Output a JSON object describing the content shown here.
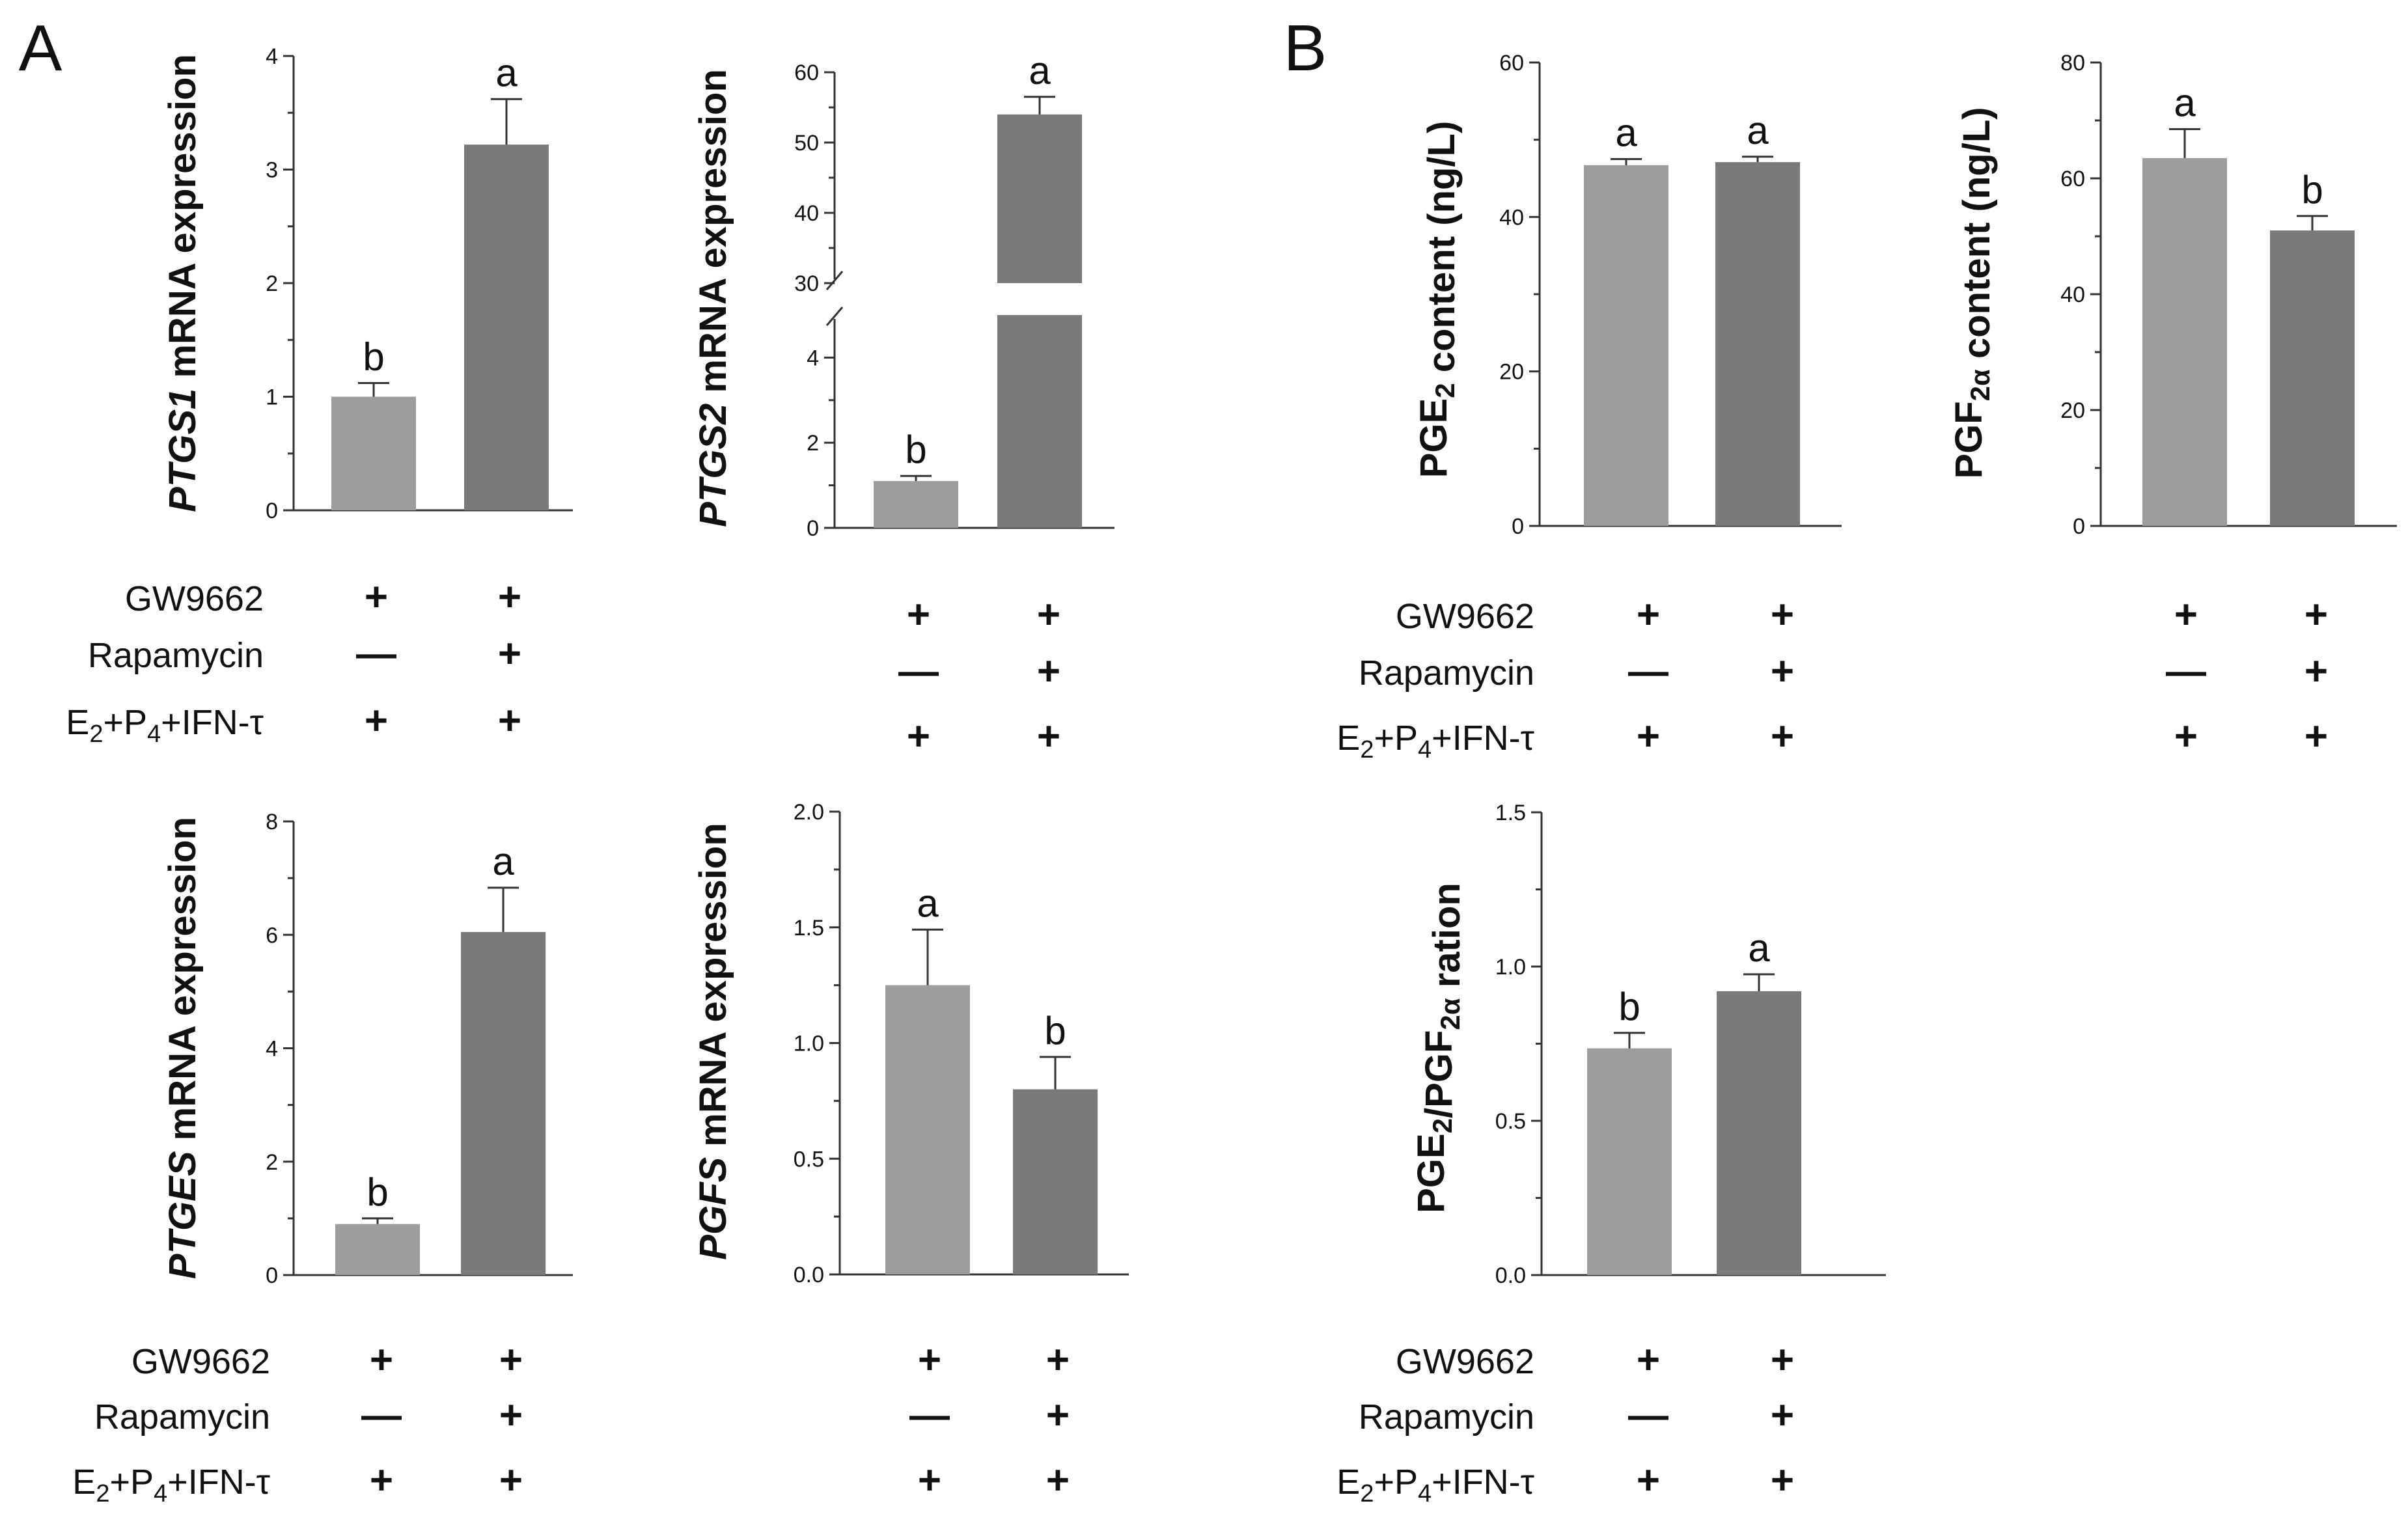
{
  "colors": {
    "bar_light": "#9d9d9f",
    "bar_dark": "#7a7a7a",
    "axis": "#333333",
    "text": "#111111"
  },
  "panels": [
    {
      "letter": "A"
    },
    {
      "letter": "B"
    }
  ],
  "treatments": {
    "rows": [
      {
        "label": "GW9662",
        "signs": [
          "+",
          "+"
        ]
      },
      {
        "label": "Rapamycin",
        "signs": [
          "—",
          "+"
        ]
      },
      {
        "label_parts": {
          "e": "E",
          "s2": "2",
          "p": "+P",
          "s4": "4",
          "ifn": "+IFN-τ"
        },
        "signs": [
          "+",
          "+"
        ]
      }
    ]
  },
  "chart_data": [
    {
      "id": "ptgs1",
      "type": "bar",
      "ylabel": {
        "gene": "PTGS1",
        "rest": " mRNA expression"
      },
      "categories": [
        "GW9662",
        "GW9662 + Rapamycin"
      ],
      "values": [
        1.0,
        3.22
      ],
      "errors": [
        0.12,
        0.4
      ],
      "letters": [
        "b",
        "a"
      ],
      "ylim": [
        0,
        4
      ],
      "ticks": [
        "0",
        "1",
        "2",
        "3",
        "4"
      ],
      "grid": false
    },
    {
      "id": "ptgs2",
      "type": "bar",
      "ylabel": {
        "gene": "PTGS2",
        "rest": " mRNA expression"
      },
      "categories": [
        "GW9662",
        "GW9662 + Rapamycin"
      ],
      "values": [
        1.1,
        54.0
      ],
      "errors": [
        0.12,
        2.5
      ],
      "letters": [
        "b",
        "a"
      ],
      "axis_break": {
        "lower_range": [
          0,
          5
        ],
        "upper_range": [
          30,
          60
        ]
      },
      "lower_ticks": [
        "0",
        "2",
        "4"
      ],
      "upper_ticks": [
        "30",
        "40",
        "50",
        "60"
      ],
      "grid": false
    },
    {
      "id": "ptges",
      "type": "bar",
      "ylabel": {
        "gene": "PTGES",
        "rest": " mRNA expression"
      },
      "categories": [
        "GW9662",
        "GW9662 + Rapamycin"
      ],
      "values": [
        0.9,
        6.05
      ],
      "errors": [
        0.1,
        0.78
      ],
      "letters": [
        "b",
        "a"
      ],
      "ylim": [
        0,
        8
      ],
      "ticks": [
        "0",
        "2",
        "4",
        "6",
        "8"
      ],
      "grid": false
    },
    {
      "id": "pgfs",
      "type": "bar",
      "ylabel": {
        "gene": "PGFS",
        "rest": " mRNA expression"
      },
      "categories": [
        "GW9662",
        "GW9662 + Rapamycin"
      ],
      "values": [
        1.25,
        0.8
      ],
      "errors": [
        0.24,
        0.14
      ],
      "letters": [
        "a",
        "b"
      ],
      "ylim": [
        0,
        2
      ],
      "ticks": [
        "0.0",
        "0.5",
        "1.0",
        "1.5",
        "2.0"
      ],
      "grid": false
    },
    {
      "id": "pge2",
      "type": "bar",
      "ylabel": {
        "a": "PGE",
        "sub": "2",
        "b": " content (ng/L)"
      },
      "categories": [
        "GW9662",
        "GW9662 + Rapamycin"
      ],
      "values": [
        46.7,
        47.1
      ],
      "errors": [
        0.8,
        0.7
      ],
      "letters": [
        "a",
        "a"
      ],
      "ylim": [
        0,
        60
      ],
      "ticks": [
        "0",
        "20",
        "40",
        "60"
      ],
      "grid": false
    },
    {
      "id": "pgf2a",
      "type": "bar",
      "ylabel": {
        "a": "PGF",
        "sub": "2α",
        "b": " content (ng/L)"
      },
      "categories": [
        "GW9662",
        "GW9662 + Rapamycin"
      ],
      "values": [
        63.5,
        51.0
      ],
      "errors": [
        5.0,
        2.5
      ],
      "letters": [
        "a",
        "b"
      ],
      "ylim": [
        0,
        80
      ],
      "ticks": [
        "0",
        "20",
        "40",
        "60",
        "80"
      ],
      "grid": false
    },
    {
      "id": "ratio",
      "type": "bar",
      "ylabel": {
        "a": "PGE",
        "sub1": "2",
        "b": "/PGF",
        "sub2": "2α",
        "c": " ration"
      },
      "categories": [
        "GW9662",
        "GW9662 + Rapamycin"
      ],
      "values": [
        0.735,
        0.92
      ],
      "errors": [
        0.05,
        0.055
      ],
      "letters": [
        "b",
        "a"
      ],
      "ylim": [
        0,
        1.5
      ],
      "ticks": [
        "0.0",
        "0.5",
        "1.0",
        "1.5"
      ],
      "grid": false
    }
  ]
}
